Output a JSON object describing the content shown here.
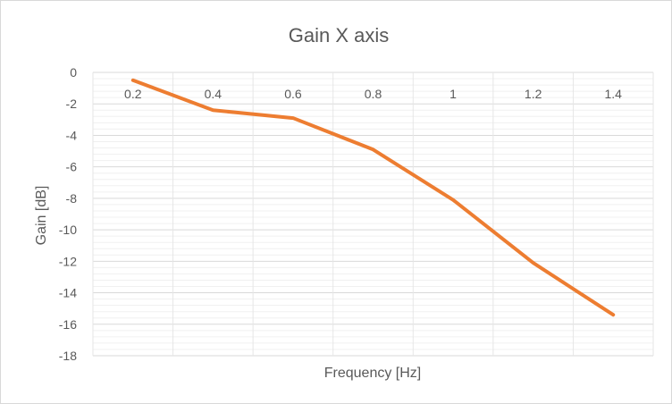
{
  "chart_data": {
    "type": "line",
    "title": "Gain X axis",
    "xlabel": "Frequency [Hz]",
    "ylabel": "Gain [dB]",
    "categories": [
      "0.2",
      "0.4",
      "0.6",
      "0.8",
      "1",
      "1.2",
      "1.4"
    ],
    "x": [
      0.2,
      0.4,
      0.6,
      0.8,
      1.0,
      1.2,
      1.4
    ],
    "series": [
      {
        "values": [
          -0.5,
          -2.4,
          -2.9,
          -4.9,
          -8.1,
          -12.1,
          -15.4
        ],
        "color": "#ED7D31"
      }
    ],
    "ylim": [
      -18,
      0
    ],
    "y_ticks": [
      "0",
      "-2",
      "-4",
      "-6",
      "-8",
      "-10",
      "-12",
      "-14",
      "-16",
      "-18"
    ],
    "x_axis_position": "top",
    "grid": true,
    "legend": "none",
    "colors": {
      "gridline": "#d9d9d9",
      "text": "#595959",
      "line": "#ED7D31"
    }
  }
}
